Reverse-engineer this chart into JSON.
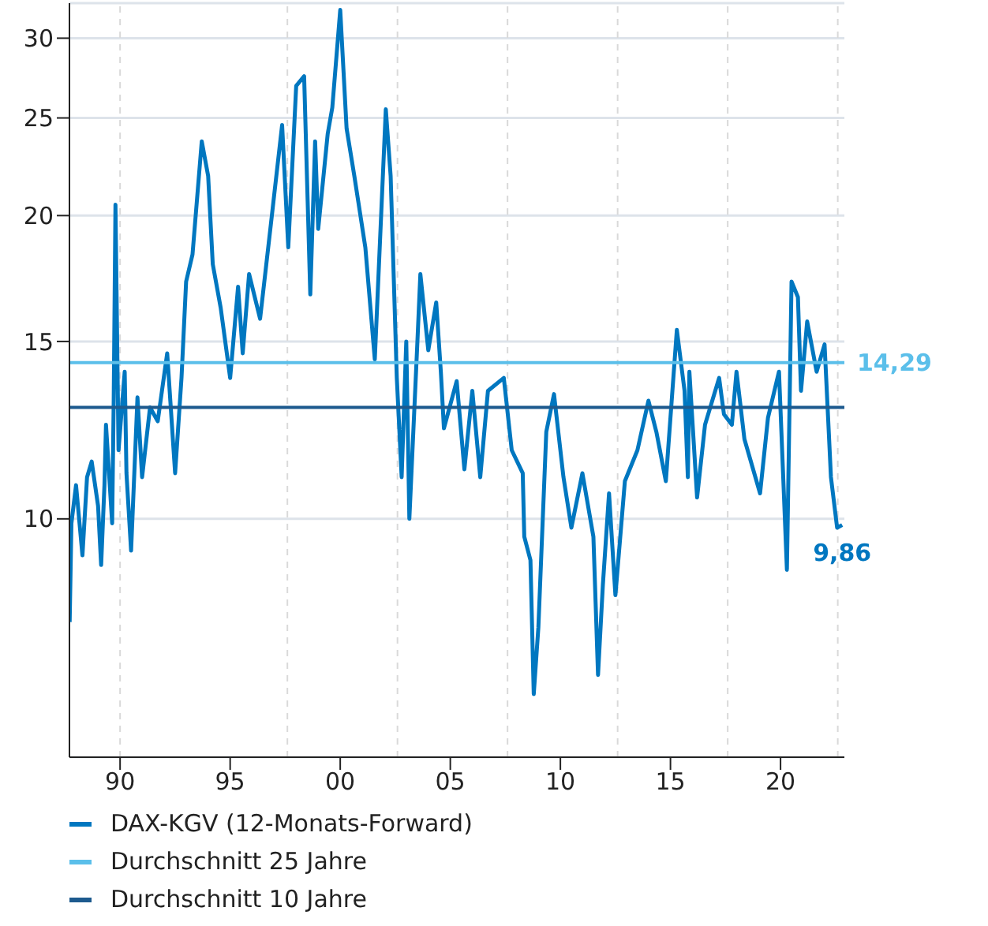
{
  "chart_data": {
    "type": "line",
    "xlim": [
      1987.7,
      2022.9
    ],
    "xticks": [
      {
        "value": 1990,
        "label": "90"
      },
      {
        "value": 1995,
        "label": "95"
      },
      {
        "value": 2000,
        "label": "00"
      },
      {
        "value": 2005,
        "label": "05"
      },
      {
        "value": 2010,
        "label": "10"
      },
      {
        "value": 2015,
        "label": "15"
      },
      {
        "value": 2020,
        "label": "20"
      }
    ],
    "ylim": [
      5.8,
      32.5
    ],
    "yticks": [
      10,
      15,
      20,
      25,
      30
    ],
    "log": "y",
    "grid": "y",
    "legend": "bottom",
    "marker": "none",
    "line_style": "solid",
    "series": [
      {
        "name": "DAX-KGV (12-Monats-Forward)",
        "color": "#0077c0",
        "x": [
          1987.71,
          1987.79,
          1988.0,
          1988.29,
          1988.5,
          1988.71,
          1989.0,
          1989.14,
          1989.29,
          1989.36,
          1989.64,
          1989.71,
          1989.79,
          1989.93,
          1990.21,
          1990.29,
          1990.5,
          1990.79,
          1991.0,
          1991.36,
          1991.71,
          1992.14,
          1992.5,
          1992.79,
          1993.0,
          1993.29,
          1993.71,
          1994.0,
          1994.21,
          1994.57,
          1995.0,
          1995.36,
          1995.57,
          1995.86,
          1996.36,
          1996.86,
          1997.36,
          1997.64,
          1998.0,
          1998.36,
          1998.64,
          1998.86,
          1999.0,
          1999.43,
          1999.64,
          2000.0,
          2000.29,
          2000.64,
          2001.14,
          2001.57,
          2002.07,
          2002.29,
          2002.57,
          2002.79,
          2003.0,
          2003.14,
          2003.5,
          2003.64,
          2004.0,
          2004.36,
          2004.57,
          2004.71,
          2005.29,
          2005.64,
          2006.0,
          2006.36,
          2006.71,
          2007.43,
          2007.79,
          2008.29,
          2008.36,
          2008.64,
          2008.79,
          2009.0,
          2009.36,
          2009.71,
          2010.14,
          2010.5,
          2011.0,
          2011.5,
          2011.71,
          2011.93,
          2012.21,
          2012.5,
          2012.93,
          2013.5,
          2014.0,
          2014.36,
          2014.79,
          2015.29,
          2015.64,
          2015.79,
          2015.86,
          2016.21,
          2016.57,
          2017.21,
          2017.43,
          2017.79,
          2018.0,
          2018.36,
          2019.07,
          2019.43,
          2019.93,
          2020.29,
          2020.5,
          2020.79,
          2020.93,
          2021.21,
          2021.64,
          2022.0,
          2022.29,
          2022.57,
          2022.8
        ],
        "values": [
          7.9,
          9.9,
          10.8,
          9.2,
          11.0,
          11.4,
          10.3,
          9.0,
          10.8,
          12.4,
          9.9,
          13.1,
          20.5,
          11.7,
          14.0,
          11.1,
          9.3,
          13.2,
          11.0,
          12.9,
          12.5,
          14.6,
          11.1,
          13.8,
          17.2,
          18.3,
          23.7,
          21.9,
          17.9,
          16.2,
          13.8,
          17.0,
          14.6,
          17.5,
          15.8,
          19.7,
          24.6,
          18.6,
          26.9,
          27.5,
          16.7,
          23.7,
          19.4,
          24.1,
          25.6,
          32.0,
          24.4,
          21.9,
          18.6,
          14.4,
          25.5,
          21.9,
          13.8,
          11.0,
          15.0,
          10.0,
          14.9,
          17.5,
          14.7,
          16.4,
          14.0,
          12.3,
          13.7,
          11.2,
          13.4,
          11.0,
          13.4,
          13.8,
          11.7,
          11.1,
          9.6,
          9.1,
          6.7,
          7.8,
          12.2,
          13.3,
          11.0,
          9.8,
          11.1,
          9.6,
          7.0,
          8.6,
          10.6,
          8.4,
          10.9,
          11.7,
          13.1,
          12.2,
          10.9,
          15.4,
          13.4,
          11.0,
          14.0,
          10.5,
          12.4,
          13.8,
          12.7,
          12.4,
          14.0,
          12.0,
          10.6,
          12.6,
          14.0,
          8.9,
          17.2,
          16.6,
          13.4,
          15.7,
          14.0,
          14.9,
          11.0,
          9.8,
          9.86
        ]
      },
      {
        "name": "Durchschnitt 25 Jahre",
        "color": "#5bbfea",
        "x": [
          1987.7,
          2022.9
        ],
        "values": [
          14.29,
          14.29
        ]
      },
      {
        "name": "Durchschnitt 10 Jahre",
        "color": "#1d5a8e",
        "x": [
          1987.7,
          2022.9
        ],
        "values": [
          12.9,
          12.9
        ]
      }
    ],
    "ref_lines": [
      {
        "axis": "x",
        "value": 1990,
        "color": "#d9d9d9",
        "line_style": "dashed"
      },
      {
        "axis": "x",
        "value": 1997.6,
        "color": "#d9d9d9",
        "line_style": "dashed"
      },
      {
        "axis": "x",
        "value": 2002.6,
        "color": "#d9d9d9",
        "line_style": "dashed"
      },
      {
        "axis": "x",
        "value": 2007.6,
        "color": "#d9d9d9",
        "line_style": "dashed"
      },
      {
        "axis": "x",
        "value": 2012.6,
        "color": "#d9d9d9",
        "line_style": "dashed"
      },
      {
        "axis": "x",
        "value": 2017.6,
        "color": "#d9d9d9",
        "line_style": "dashed"
      },
      {
        "axis": "x",
        "value": 2022.6,
        "color": "#d9d9d9",
        "line_style": "dashed"
      }
    ],
    "annotations": [
      {
        "text": "14,29",
        "x": 2022.9,
        "y": 14.29
      },
      {
        "text": "9,86",
        "x": 2022.8,
        "y": 9.86
      }
    ]
  }
}
